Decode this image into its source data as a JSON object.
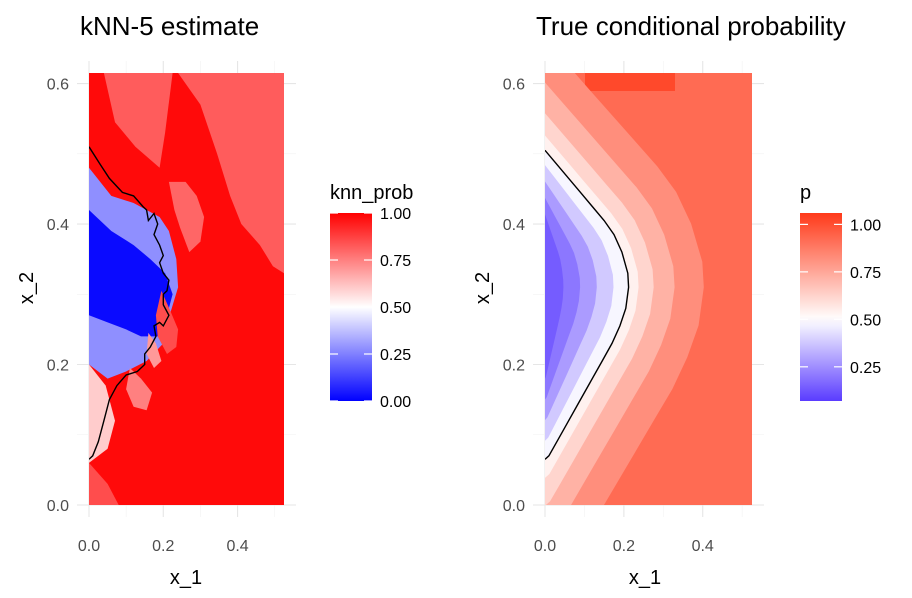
{
  "chart_data": [
    {
      "type": "heatmap",
      "title": "kNN-5 estimate",
      "xlabel": "x_1",
      "ylabel": "x_2",
      "xlim": [
        0.0,
        0.525
      ],
      "ylim": [
        0.0,
        0.615
      ],
      "xticks": [
        "0.0",
        "0.2",
        "0.4"
      ],
      "yticks": [
        "0.0",
        "0.2",
        "0.4",
        "0.6"
      ],
      "legend": {
        "title": "knn_prob",
        "ticks": [
          "0.00",
          "0.25",
          "0.50",
          "0.75",
          "1.00"
        ],
        "min": 0.0,
        "max": 1.0,
        "placement": "right"
      },
      "colors": {
        "low": "#0000ff",
        "mid": "#ffffff",
        "high": "#ff0000"
      },
      "contour_level": 0.5,
      "regions": [
        {
          "polygon": [
            [
              0.0,
              0.615
            ],
            [
              0.525,
              0.615
            ],
            [
              0.525,
              0.0
            ],
            [
              0.0,
              0.0
            ]
          ],
          "value": 0.98
        },
        {
          "polygon": [
            [
              0.04,
              0.615
            ],
            [
              0.225,
              0.615
            ],
            [
              0.205,
              0.53
            ],
            [
              0.19,
              0.48
            ],
            [
              0.125,
              0.51
            ],
            [
              0.07,
              0.545
            ]
          ],
          "value": 0.82
        },
        {
          "polygon": [
            [
              0.24,
              0.615
            ],
            [
              0.525,
              0.615
            ],
            [
              0.525,
              0.33
            ],
            [
              0.495,
              0.34
            ],
            [
              0.46,
              0.37
            ],
            [
              0.41,
              0.4
            ],
            [
              0.38,
              0.44
            ],
            [
              0.345,
              0.5
            ],
            [
              0.3,
              0.57
            ]
          ],
          "value": 0.82
        },
        {
          "polygon": [
            [
              0.215,
              0.46
            ],
            [
              0.23,
              0.42
            ],
            [
              0.245,
              0.395
            ],
            [
              0.27,
              0.36
            ],
            [
              0.3,
              0.375
            ],
            [
              0.31,
              0.41
            ],
            [
              0.29,
              0.44
            ],
            [
              0.26,
              0.46
            ]
          ],
          "value": 0.8
        },
        {
          "polygon": [
            [
              0.0,
              0.2
            ],
            [
              0.045,
              0.17
            ],
            [
              0.07,
              0.12
            ],
            [
              0.05,
              0.08
            ],
            [
              0.0,
              0.06
            ]
          ],
          "value": 0.6
        },
        {
          "polygon": [
            [
              0.0,
              0.06
            ],
            [
              0.05,
              0.03
            ],
            [
              0.08,
              0.0
            ],
            [
              0.0,
              0.0
            ]
          ],
          "value": 0.85
        },
        {
          "polygon": [
            [
              0.0,
              0.48
            ],
            [
              0.06,
              0.44
            ],
            [
              0.12,
              0.43
            ],
            [
              0.155,
              0.42
            ],
            [
              0.19,
              0.41
            ],
            [
              0.215,
              0.39
            ],
            [
              0.235,
              0.35
            ],
            [
              0.24,
              0.31
            ],
            [
              0.22,
              0.275
            ],
            [
              0.2,
              0.23
            ],
            [
              0.155,
              0.205
            ],
            [
              0.1,
              0.19
            ],
            [
              0.05,
              0.18
            ],
            [
              0.0,
              0.2
            ]
          ],
          "value": 0.28
        },
        {
          "polygon": [
            [
              0.0,
              0.42
            ],
            [
              0.06,
              0.39
            ],
            [
              0.12,
              0.37
            ],
            [
              0.165,
              0.35
            ],
            [
              0.205,
              0.33
            ],
            [
              0.225,
              0.3
            ],
            [
              0.21,
              0.27
            ],
            [
              0.185,
              0.24
            ],
            [
              0.14,
              0.24
            ],
            [
              0.1,
              0.25
            ],
            [
              0.05,
              0.26
            ],
            [
              0.0,
              0.27
            ]
          ],
          "value": 0.02
        },
        {
          "polygon": [
            [
              0.195,
              0.305
            ],
            [
              0.22,
              0.275
            ],
            [
              0.24,
              0.25
            ],
            [
              0.235,
              0.225
            ],
            [
              0.21,
              0.215
            ],
            [
              0.185,
              0.24
            ],
            [
              0.18,
              0.27
            ]
          ],
          "value": 0.85
        },
        {
          "polygon": [
            [
              0.11,
              0.195
            ],
            [
              0.14,
              0.18
            ],
            [
              0.17,
              0.16
            ],
            [
              0.155,
              0.135
            ],
            [
              0.12,
              0.14
            ],
            [
              0.1,
              0.165
            ]
          ],
          "value": 0.75
        },
        {
          "polygon": [
            [
              0.16,
              0.245
            ],
            [
              0.18,
              0.23
            ],
            [
              0.195,
              0.205
            ],
            [
              0.175,
              0.195
            ],
            [
              0.155,
              0.215
            ]
          ],
          "value": 0.7
        }
      ],
      "contours": [
        [
          [
            0.0,
            0.51
          ],
          [
            0.03,
            0.485
          ],
          [
            0.055,
            0.465
          ],
          [
            0.09,
            0.445
          ],
          [
            0.12,
            0.44
          ],
          [
            0.145,
            0.425
          ],
          [
            0.155,
            0.42
          ],
          [
            0.16,
            0.405
          ],
          [
            0.175,
            0.415
          ],
          [
            0.185,
            0.4
          ],
          [
            0.175,
            0.385
          ],
          [
            0.19,
            0.37
          ],
          [
            0.2,
            0.355
          ],
          [
            0.19,
            0.345
          ],
          [
            0.2,
            0.33
          ],
          [
            0.215,
            0.32
          ],
          [
            0.21,
            0.305
          ],
          [
            0.2,
            0.3
          ],
          [
            0.2,
            0.285
          ],
          [
            0.215,
            0.27
          ],
          [
            0.2,
            0.255
          ],
          [
            0.19,
            0.26
          ],
          [
            0.175,
            0.255
          ],
          [
            0.18,
            0.24
          ],
          [
            0.165,
            0.225
          ],
          [
            0.15,
            0.215
          ],
          [
            0.15,
            0.2
          ],
          [
            0.13,
            0.19
          ],
          [
            0.1,
            0.185
          ],
          [
            0.075,
            0.17
          ],
          [
            0.055,
            0.15
          ],
          [
            0.04,
            0.12
          ],
          [
            0.025,
            0.09
          ],
          [
            0.01,
            0.07
          ],
          [
            0.0,
            0.065
          ]
        ]
      ]
    },
    {
      "type": "heatmap",
      "title": "True conditional probability",
      "xlabel": "x_1",
      "ylabel": "x_2",
      "xlim": [
        0.0,
        0.525
      ],
      "ylim": [
        0.0,
        0.615
      ],
      "xticks": [
        "0.0",
        "0.2",
        "0.4"
      ],
      "yticks": [
        "0.0",
        "0.2",
        "0.4",
        "0.6"
      ],
      "legend": {
        "title": "p",
        "ticks": [
          "0.25",
          "0.50",
          "0.75",
          "1.00"
        ],
        "min": 0.07,
        "max": 1.06,
        "placement": "right"
      },
      "colors": {
        "low": "#5a3cff",
        "mid": "#ffffff",
        "high": "#ff3a1a"
      },
      "contour_level": 0.5,
      "contours": [
        [
          [
            0.0,
            0.505
          ],
          [
            0.03,
            0.485
          ],
          [
            0.06,
            0.465
          ],
          [
            0.09,
            0.445
          ],
          [
            0.12,
            0.425
          ],
          [
            0.15,
            0.405
          ],
          [
            0.175,
            0.385
          ],
          [
            0.195,
            0.36
          ],
          [
            0.21,
            0.33
          ],
          [
            0.212,
            0.31
          ],
          [
            0.205,
            0.28
          ],
          [
            0.19,
            0.255
          ],
          [
            0.17,
            0.23
          ],
          [
            0.145,
            0.205
          ],
          [
            0.115,
            0.175
          ],
          [
            0.085,
            0.145
          ],
          [
            0.055,
            0.115
          ],
          [
            0.03,
            0.09
          ],
          [
            0.01,
            0.07
          ],
          [
            0.0,
            0.065
          ]
        ]
      ]
    }
  ]
}
